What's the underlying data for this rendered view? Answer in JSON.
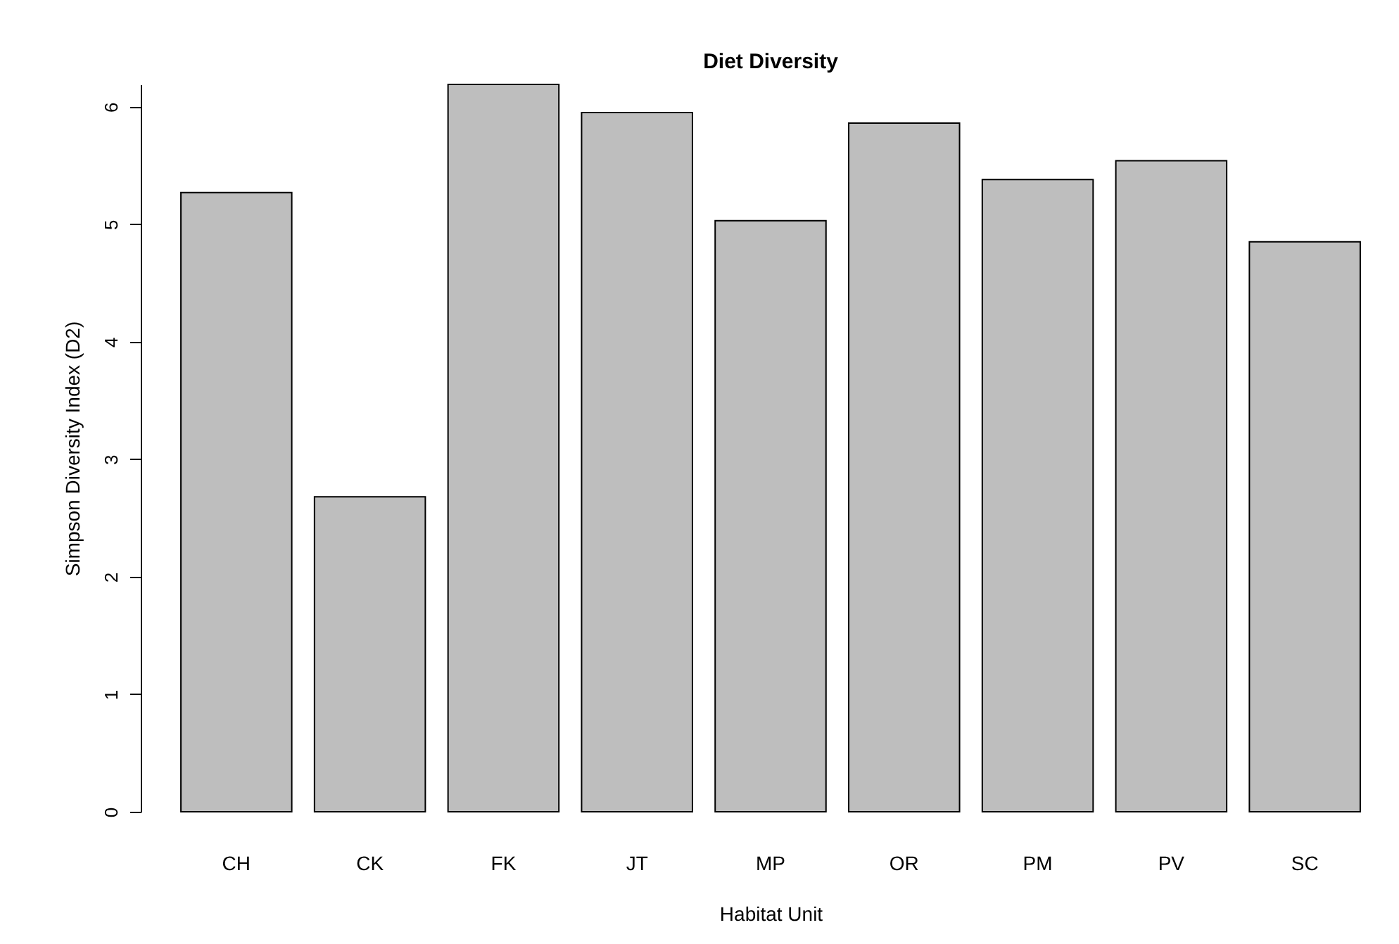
{
  "chart_data": {
    "type": "bar",
    "title": "Diet Diversity",
    "xlabel": "Habitat Unit",
    "ylabel": "Simpson Diversity Index (D2)",
    "categories": [
      "CH",
      "CK",
      "FK",
      "JT",
      "MP",
      "OR",
      "PM",
      "PV",
      "SC"
    ],
    "values": [
      5.27,
      2.68,
      6.19,
      5.95,
      5.03,
      5.86,
      5.38,
      5.54,
      4.85
    ],
    "color": "#bebebe",
    "ylim": [
      0,
      6.19
    ],
    "yticks": [
      0,
      1,
      2,
      3,
      4,
      5,
      6
    ],
    "grid": false
  }
}
